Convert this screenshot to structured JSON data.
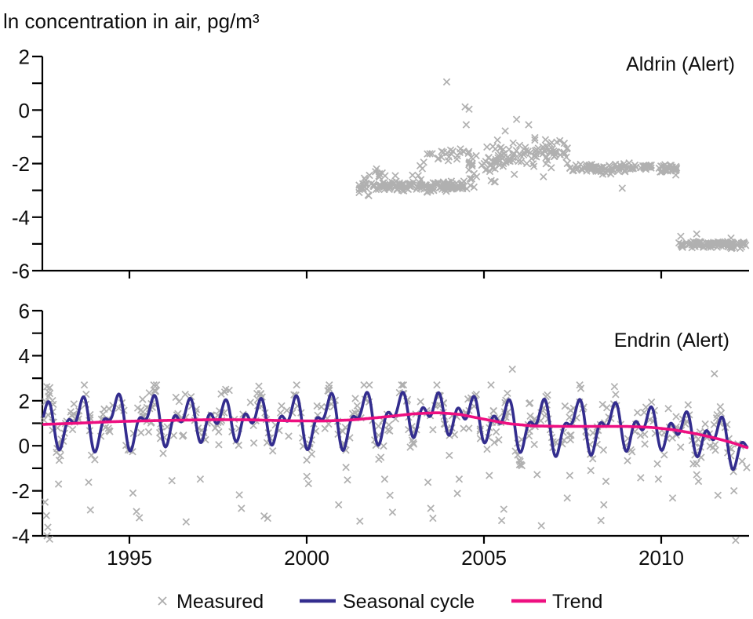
{
  "figure": {
    "title": "ln concentration in air, pg/m³"
  },
  "colors": {
    "measured": "#9c9c9c",
    "seasonal": "#332d8e",
    "trend": "#ee0f80",
    "axis": "#000000",
    "text": "#0d0d0d",
    "background": "#ffffff"
  },
  "legend": {
    "items": [
      {
        "label": "Measured",
        "type": "marker-x",
        "color": "#9c9c9c"
      },
      {
        "label": "Seasonal cycle",
        "type": "line",
        "color": "#332d8e"
      },
      {
        "label": "Trend",
        "type": "line",
        "color": "#ee0f80"
      }
    ]
  },
  "chart_data": [
    {
      "type": "scatter",
      "title": "Aldrin (Alert)",
      "compound": "Aldrin",
      "site": "Alert",
      "marker": "x",
      "xlim": [
        1992.58,
        2012.42
      ],
      "ylim": [
        -6,
        2
      ],
      "yticks_labeled": [
        2,
        0,
        -2,
        -4,
        -6
      ],
      "ytick_minor_step": 1,
      "xticks": [
        1995,
        2000,
        2005,
        2010
      ],
      "show_xtick_labels": false,
      "clusters": [
        {
          "name": "plateau-2001-2004",
          "x_range": [
            2001.45,
            2004.55
          ],
          "center": [
            [
              2001.45,
              -2.85
            ],
            [
              2004.55,
              -2.85
            ]
          ],
          "sd": 0.1,
          "n": 150
        },
        {
          "name": "upper-scatter-2001-2003",
          "x_range": [
            2001.6,
            2003.35
          ],
          "center": [
            [
              2001.6,
              -2.45
            ],
            [
              2003.35,
              -2.4
            ]
          ],
          "sd": 0.12,
          "n": 12
        },
        {
          "name": "band-2003-2004",
          "x_range": [
            2003.4,
            2004.5
          ],
          "center": [
            [
              2003.4,
              -1.63
            ],
            [
              2004.5,
              -1.6
            ]
          ],
          "sd": 0.1,
          "n": 20
        },
        {
          "name": "elevated-2004-2007",
          "x_range": [
            2004.55,
            2007.38
          ],
          "center": [
            [
              2004.55,
              -1.95
            ],
            [
              2005.3,
              -1.93
            ],
            [
              2005.9,
              -1.8
            ],
            [
              2006.5,
              -1.62
            ],
            [
              2007.0,
              -1.6
            ],
            [
              2007.38,
              -1.85
            ]
          ],
          "sd": 0.3,
          "n": 130,
          "y_max": -0.98
        },
        {
          "name": "plateau-2007-2010",
          "x_range": [
            2007.4,
            2010.45
          ],
          "center": [
            [
              2007.4,
              -2.15
            ],
            [
              2010.45,
              -2.17
            ]
          ],
          "sd": 0.075,
          "n": 120
        },
        {
          "name": "plateau-2010-2012",
          "x_range": [
            2010.5,
            2012.42
          ],
          "center": [
            [
              2010.5,
              -5.0
            ],
            [
              2012.42,
              -5.02
            ]
          ],
          "sd": 0.07,
          "n": 95
        }
      ],
      "outliers": [
        [
          2003.95,
          1.05
        ],
        [
          2004.47,
          0.12
        ],
        [
          2004.58,
          0.03
        ],
        [
          2004.5,
          -0.55
        ],
        [
          2005.6,
          -0.78
        ],
        [
          2005.92,
          -0.35
        ],
        [
          2006.26,
          -0.55
        ],
        [
          2008.9,
          -2.92
        ],
        [
          2010.55,
          -4.72
        ],
        [
          2011.0,
          -4.63
        ],
        [
          2011.97,
          -4.78
        ],
        [
          2001.97,
          -2.2
        ],
        [
          2002.5,
          -2.45
        ],
        [
          2001.48,
          -3.08
        ],
        [
          2001.75,
          -3.2
        ],
        [
          2004.62,
          -2.82
        ],
        [
          2004.72,
          -2.88
        ],
        [
          2008.35,
          -2.4
        ],
        [
          2008.45,
          -2.36
        ],
        [
          2003.3,
          -1.95
        ],
        [
          2003.2,
          -2.08
        ]
      ]
    },
    {
      "type": "scatter-with-lines",
      "title": "Endrin (Alert)",
      "compound": "Endrin",
      "site": "Alert",
      "marker": "x",
      "xlim": [
        1992.58,
        2012.42
      ],
      "ylim": [
        -4,
        6
      ],
      "yticks_labeled": [
        6,
        4,
        2,
        0,
        -2,
        -4
      ],
      "ytick_minor_step": 1,
      "xticks": [
        1995,
        2000,
        2005,
        2010
      ],
      "show_xtick_labels": true,
      "measured_cloud": {
        "n": 470,
        "sd": 0.5,
        "dev_min": -1.3,
        "dev_max": 0.85,
        "y_max": 2.7,
        "y_min": -4.25
      },
      "outliers_low": [
        [
          1992.62,
          -2.5
        ],
        [
          1992.66,
          -3.1
        ],
        [
          1992.7,
          -3.62
        ],
        [
          1992.68,
          -4.0
        ],
        [
          1992.75,
          -4.15
        ],
        [
          1993.0,
          -1.7
        ],
        [
          1993.85,
          -1.62
        ],
        [
          1993.9,
          -2.85
        ],
        [
          1995.1,
          -2.1
        ],
        [
          1995.2,
          -2.92
        ],
        [
          1995.28,
          -3.2
        ],
        [
          1996.2,
          -1.55
        ],
        [
          1996.6,
          -3.38
        ],
        [
          1997.0,
          -1.48
        ],
        [
          1998.1,
          -2.18
        ],
        [
          1998.16,
          -2.78
        ],
        [
          1998.8,
          -3.12
        ],
        [
          1998.9,
          -3.22
        ],
        [
          2000.05,
          -1.68
        ],
        [
          2000.9,
          -2.62
        ],
        [
          2001.15,
          -1.52
        ],
        [
          2001.5,
          -3.35
        ],
        [
          2002.2,
          -1.48
        ],
        [
          2002.35,
          -2.2
        ],
        [
          2002.42,
          -2.95
        ],
        [
          2003.42,
          -1.62
        ],
        [
          2003.5,
          -2.78
        ],
        [
          2003.56,
          -3.22
        ],
        [
          2004.25,
          -2.12
        ],
        [
          2004.3,
          -1.48
        ],
        [
          2005.15,
          -1.32
        ],
        [
          2005.5,
          -3.32
        ],
        [
          2005.56,
          -2.82
        ],
        [
          2006.5,
          -1.28
        ],
        [
          2006.62,
          -3.55
        ],
        [
          2007.35,
          -2.32
        ],
        [
          2007.42,
          -1.32
        ],
        [
          2008.3,
          -3.32
        ],
        [
          2008.38,
          -2.62
        ],
        [
          2008.44,
          -1.58
        ],
        [
          2009.42,
          -1.42
        ],
        [
          2009.92,
          -1.48
        ],
        [
          2010.32,
          -2.32
        ],
        [
          2011.05,
          -1.58
        ],
        [
          2011.6,
          -2.2
        ],
        [
          2012.1,
          -4.2
        ]
      ],
      "outliers_high": [
        [
          2005.8,
          3.4
        ],
        [
          2011.5,
          3.2
        ],
        [
          2005.2,
          2.7
        ]
      ],
      "trend_points": [
        [
          1992.58,
          0.95
        ],
        [
          1993.5,
          1.0
        ],
        [
          1994.5,
          1.07
        ],
        [
          1995.5,
          1.11
        ],
        [
          1996.5,
          1.14
        ],
        [
          1997.5,
          1.16
        ],
        [
          1998.5,
          1.15
        ],
        [
          1999.5,
          1.11
        ],
        [
          2000.5,
          1.1
        ],
        [
          2001.3,
          1.15
        ],
        [
          2002.2,
          1.28
        ],
        [
          2003.0,
          1.42
        ],
        [
          2003.7,
          1.47
        ],
        [
          2004.3,
          1.4
        ],
        [
          2005.0,
          1.18
        ],
        [
          2005.7,
          0.98
        ],
        [
          2006.4,
          0.88
        ],
        [
          2007.2,
          0.86
        ],
        [
          2008.0,
          0.86
        ],
        [
          2009.0,
          0.86
        ],
        [
          2009.7,
          0.82
        ],
        [
          2010.3,
          0.72
        ],
        [
          2010.9,
          0.56
        ],
        [
          2011.5,
          0.35
        ],
        [
          2012.0,
          0.14
        ],
        [
          2012.42,
          -0.08
        ]
      ],
      "seasonal_model": {
        "annual_amplitude": 0.72,
        "semiannual_amplitude": 0.55,
        "annual_phase": 0.35,
        "semiannual_phase": 0.12,
        "amplitude_modulation": 0.3,
        "modulation_period_years": 6.3
      }
    }
  ]
}
